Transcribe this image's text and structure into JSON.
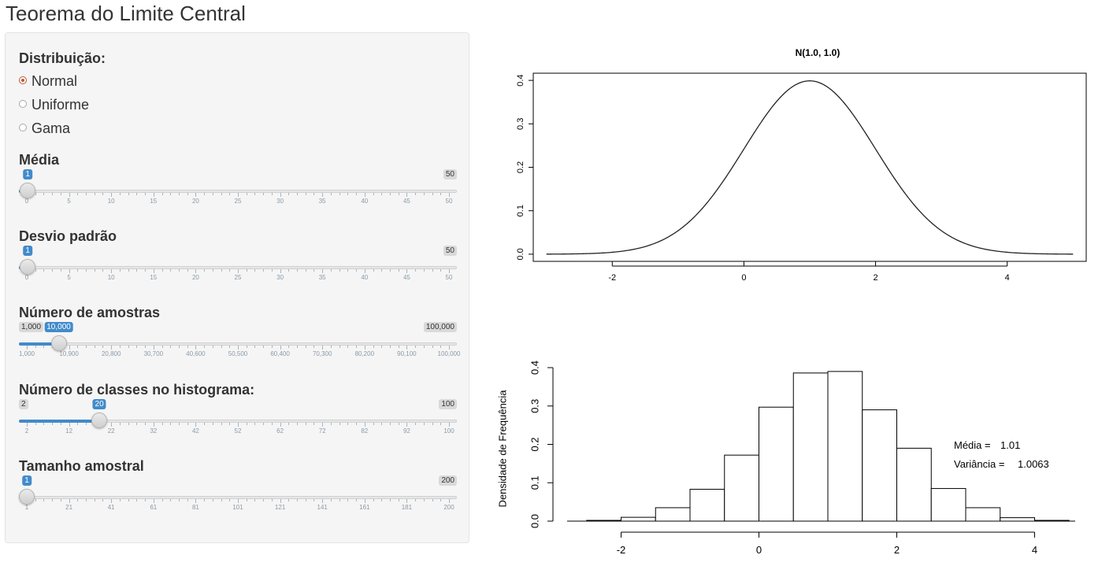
{
  "app": {
    "title": "Teorema do Limite Central"
  },
  "controls": {
    "distribution": {
      "label": "Distribuição:",
      "options": [
        "Normal",
        "Uniforme",
        "Gama"
      ],
      "selected": "Normal"
    },
    "sliders": [
      {
        "id": "media",
        "label": "Média",
        "min": 0,
        "max": 50,
        "value": 1,
        "min_text": "",
        "max_text": "50",
        "value_text": "1",
        "tick_labels": [
          "0",
          "5",
          "10",
          "15",
          "20",
          "25",
          "30",
          "35",
          "40",
          "45",
          "50"
        ]
      },
      {
        "id": "desvio",
        "label": "Desvio padrão",
        "min": 0,
        "max": 50,
        "value": 1,
        "min_text": "",
        "max_text": "50",
        "value_text": "1",
        "tick_labels": [
          "0",
          "5",
          "10",
          "15",
          "20",
          "25",
          "30",
          "35",
          "40",
          "45",
          "50"
        ]
      },
      {
        "id": "amostras",
        "label": "Número de amostras",
        "min": 1000,
        "max": 100000,
        "value": 10000,
        "min_text": "1,000",
        "max_text": "100,000",
        "value_text": "10,000",
        "tick_labels": [
          "1,000",
          "10,900",
          "20,800",
          "30,700",
          "40,600",
          "50,500",
          "60,400",
          "70,300",
          "80,200",
          "90,100",
          "100,000"
        ]
      },
      {
        "id": "classes",
        "label": "Número de classes no histograma:",
        "min": 2,
        "max": 100,
        "value": 20,
        "min_text": "2",
        "max_text": "100",
        "value_text": "20",
        "tick_labels": [
          "2",
          "12",
          "22",
          "32",
          "42",
          "52",
          "62",
          "72",
          "82",
          "92",
          "100"
        ]
      },
      {
        "id": "tamanho",
        "label": "Tamanho amostral",
        "min": 1,
        "max": 200,
        "value": 1,
        "min_text": "",
        "max_text": "200",
        "value_text": "1",
        "tick_labels": [
          "1",
          "21",
          "41",
          "61",
          "81",
          "101",
          "121",
          "141",
          "161",
          "181",
          "200"
        ]
      }
    ],
    "accent_color": "#428bca",
    "radio_color": "#c0543a"
  },
  "chart_data": [
    {
      "type": "line",
      "title": "N(1.0, 1.0)",
      "xlabel": "",
      "ylabel": "",
      "xlim": [
        -3.2,
        5.2
      ],
      "ylim": [
        0,
        0.4
      ],
      "x_ticks": [
        -2,
        0,
        2,
        4
      ],
      "y_ticks": [
        0.0,
        0.1,
        0.2,
        0.3,
        0.4
      ],
      "y_tick_labels": [
        "0.0",
        "0.1",
        "0.2",
        "0.3",
        "0.4"
      ],
      "curve": {
        "mean": 1.0,
        "sd": 1.0,
        "x_from": -3,
        "x_to": 5
      },
      "grid": false
    },
    {
      "type": "bar",
      "title": "",
      "xlabel": "",
      "ylabel": "Densidade de Frequência",
      "xlim": [
        -3,
        5
      ],
      "ylim": [
        0,
        0.4
      ],
      "x_ticks": [
        -2,
        0,
        2,
        4
      ],
      "y_ticks": [
        0.0,
        0.1,
        0.2,
        0.3,
        0.4
      ],
      "y_tick_labels": [
        "0.0",
        "0.1",
        "0.2",
        "0.3",
        "0.4"
      ],
      "bins": [
        {
          "from": -2.5,
          "to": -2.0,
          "density": 0.002
        },
        {
          "from": -2.0,
          "to": -1.5,
          "density": 0.01
        },
        {
          "from": -1.5,
          "to": -1.0,
          "density": 0.035
        },
        {
          "from": -1.0,
          "to": -0.5,
          "density": 0.083
        },
        {
          "from": -0.5,
          "to": 0.0,
          "density": 0.172
        },
        {
          "from": 0.0,
          "to": 0.5,
          "density": 0.297
        },
        {
          "from": 0.5,
          "to": 1.0,
          "density": 0.386
        },
        {
          "from": 1.0,
          "to": 1.5,
          "density": 0.39
        },
        {
          "from": 1.5,
          "to": 2.0,
          "density": 0.29
        },
        {
          "from": 2.0,
          "to": 2.5,
          "density": 0.19
        },
        {
          "from": 2.5,
          "to": 3.0,
          "density": 0.085
        },
        {
          "from": 3.0,
          "to": 3.5,
          "density": 0.035
        },
        {
          "from": 3.5,
          "to": 4.0,
          "density": 0.009
        },
        {
          "from": 4.0,
          "to": 4.5,
          "density": 0.002
        }
      ],
      "annotations": [
        {
          "label": "Média = ",
          "value": "1.01"
        },
        {
          "label": "Variância = ",
          "value": "1.0063"
        }
      ],
      "grid": false
    }
  ]
}
